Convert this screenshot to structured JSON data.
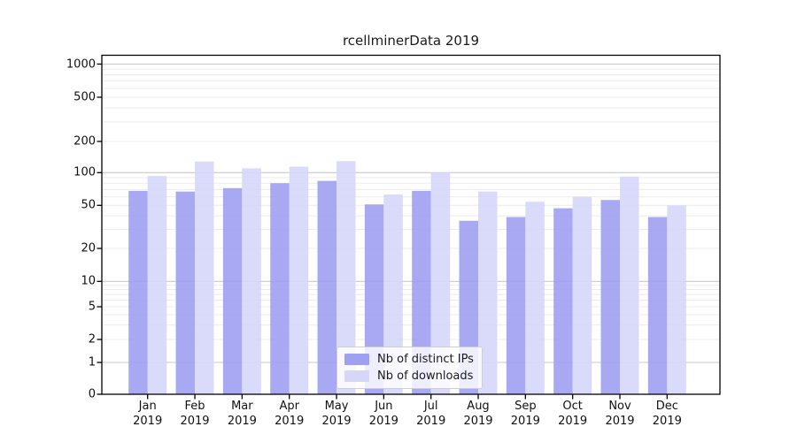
{
  "figure": {
    "title": "rcellminerData 2019"
  },
  "chart_data": {
    "type": "bar",
    "title": "rcellminerData 2019",
    "categories": [
      "Jan",
      "Feb",
      "Mar",
      "Apr",
      "May",
      "Jun",
      "Jul",
      "Aug",
      "Sep",
      "Oct",
      "Nov",
      "Dec"
    ],
    "category_year": "2019",
    "series": [
      {
        "name": "Nb of distinct IPs",
        "color": "#a0a0f2",
        "values": [
          68,
          67,
          72,
          80,
          84,
          51,
          68,
          36,
          39,
          47,
          56,
          39
        ]
      },
      {
        "name": "Nb of downloads",
        "color": "#d6d6f9",
        "values": [
          93,
          128,
          110,
          114,
          129,
          63,
          100,
          67,
          54,
          60,
          92,
          50
        ]
      }
    ],
    "xlabel": "",
    "ylabel": "",
    "yscale": "pseudo-log",
    "y_ticks": [
      0,
      1,
      2,
      5,
      10,
      20,
      50,
      100,
      200,
      500,
      1000
    ],
    "ylim": [
      0,
      1400
    ],
    "grid": true,
    "legend_position": "lower-center-inside"
  },
  "legend": {
    "items": [
      {
        "label": "Nb of distinct IPs",
        "color": "#a0a0f2"
      },
      {
        "label": "Nb of downloads",
        "color": "#d6d6f9"
      }
    ]
  },
  "colors": {
    "background": "#ffffff",
    "bar_distinct_ips": "#a0a0f2",
    "bar_downloads": "#d6d6f9",
    "grid_minor": "#ececec",
    "grid_major": "#c9c9c9",
    "axis_line": "#000000",
    "tick_text": "#111111",
    "title_text": "#1a1a1a",
    "legend_border": "#cfcfcf"
  }
}
